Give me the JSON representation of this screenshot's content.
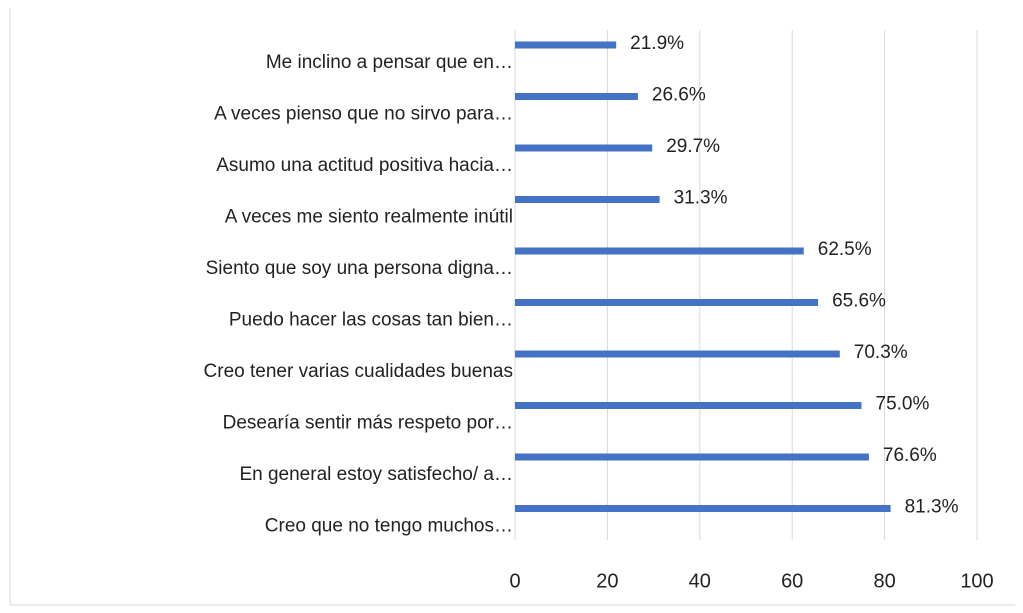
{
  "chart_data": {
    "type": "bar",
    "orientation": "horizontal",
    "categories": [
      "Me inclino a pensar que en…",
      "A veces pienso que no sirvo para…",
      "Asumo una actitud positiva hacia…",
      "A veces me siento realmente inútil",
      "Siento que soy una persona digna…",
      "Puedo hacer las cosas tan bien…",
      "Creo tener varias cualidades buenas",
      "Desearía sentir más respeto por…",
      "En general estoy satisfecho/ a…",
      "Creo que no tengo muchos…"
    ],
    "values": [
      21.9,
      26.6,
      29.7,
      31.3,
      62.5,
      65.6,
      70.3,
      75.0,
      76.6,
      81.3
    ],
    "value_labels": [
      "21.9%",
      "26.6%",
      "29.7%",
      "31.3%",
      "62.5%",
      "65.6%",
      "70.3%",
      "75.0%",
      "76.6%",
      "81.3%"
    ],
    "color": "#4472c4",
    "xlim": [
      0,
      100
    ],
    "xticks": [
      0,
      20,
      40,
      60,
      80,
      100
    ],
    "grid": true
  }
}
